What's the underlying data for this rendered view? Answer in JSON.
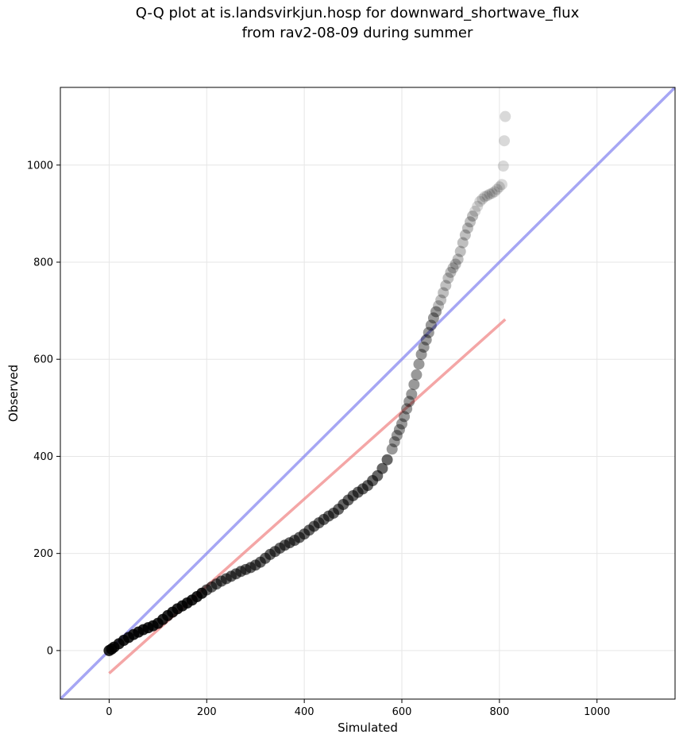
{
  "chart_data": {
    "type": "scatter",
    "title": [
      "Q-Q plot at is.landsvirkjun.hosp for downward_shortwave_flux",
      "from rav2-08-09 during summer"
    ],
    "xlabel": "Simulated",
    "ylabel": "Observed",
    "xlim": [
      -100,
      1160
    ],
    "ylim": [
      -100,
      1160
    ],
    "xticks": [
      0,
      200,
      400,
      600,
      800,
      1000
    ],
    "yticks": [
      0,
      200,
      400,
      600,
      800,
      1000
    ],
    "grid": true,
    "reference_line": {
      "x": [
        -100,
        1160
      ],
      "y": [
        -100,
        1160
      ],
      "color": "#8080f0"
    },
    "fit_line": {
      "x": [
        0,
        812
      ],
      "y": [
        -47,
        682
      ],
      "color": "#f08080"
    },
    "quantiles": {
      "x": [
        0,
        5,
        10,
        20,
        30,
        40,
        50,
        60,
        70,
        80,
        90,
        100,
        110,
        120,
        130,
        140,
        150,
        160,
        170,
        180,
        190,
        200,
        210,
        220,
        230,
        240,
        250,
        260,
        270,
        280,
        290,
        300,
        310,
        320,
        330,
        340,
        350,
        360,
        370,
        380,
        390,
        400,
        410,
        420,
        430,
        440,
        450,
        460,
        470,
        480,
        490,
        500,
        510,
        520,
        530,
        540,
        550,
        560,
        570,
        580,
        585,
        590,
        595,
        600,
        605,
        610,
        615,
        620,
        625,
        630,
        635,
        640,
        645,
        650,
        655,
        660,
        665,
        670,
        675,
        680,
        685,
        690,
        695,
        700,
        705,
        710,
        715,
        720,
        725,
        730,
        735,
        740,
        745,
        750,
        755,
        760,
        765,
        770,
        775,
        780,
        785,
        790,
        795,
        800,
        805,
        808,
        810,
        812
      ],
      "y": [
        0,
        3,
        7,
        14,
        21,
        27,
        33,
        38,
        43,
        47,
        51,
        56,
        64,
        72,
        79,
        86,
        92,
        98,
        104,
        111,
        118,
        125,
        131,
        137,
        143,
        148,
        153,
        158,
        163,
        167,
        171,
        176,
        182,
        190,
        198,
        204,
        211,
        217,
        222,
        227,
        233,
        240,
        248,
        256,
        263,
        270,
        277,
        283,
        291,
        301,
        310,
        319,
        326,
        333,
        340,
        350,
        360,
        375,
        393,
        415,
        430,
        443,
        455,
        467,
        482,
        498,
        513,
        528,
        548,
        568,
        590,
        610,
        625,
        640,
        655,
        670,
        685,
        698,
        710,
        722,
        737,
        752,
        767,
        779,
        788,
        796,
        806,
        822,
        840,
        856,
        870,
        883,
        895,
        905,
        915,
        925,
        930,
        935,
        937,
        940,
        942,
        945,
        950,
        955,
        960,
        998,
        1050,
        1100
      ],
      "color": "#000000"
    }
  }
}
